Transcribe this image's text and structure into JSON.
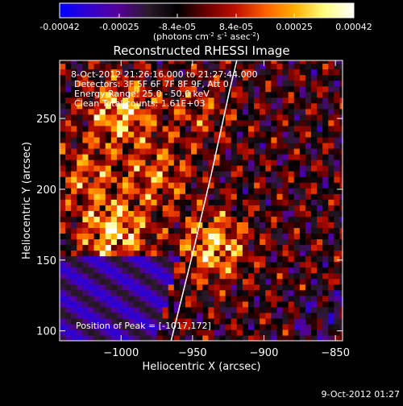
{
  "colorbar": {
    "tick_labels": [
      "-0.00042",
      "-0.00025",
      "-8.4e-05",
      "8.4e-05",
      "0.00025",
      "0.00042"
    ],
    "tick_values": [
      -0.00042,
      -0.00025,
      -8.4e-05,
      8.4e-05,
      0.00025,
      0.00042
    ],
    "range": [
      -0.00042,
      0.00042
    ],
    "units_prefix": "(photons cm",
    "units_exp1": "-2",
    "units_mid1": " s",
    "units_exp2": "-1",
    "units_mid2": " asec",
    "units_exp3": "-2",
    "units_suffix": ")",
    "colors": [
      "#0000ff",
      "#3300cc",
      "#550099",
      "#2a1a2a",
      "#000000",
      "#6a0000",
      "#c01000",
      "#ff6000",
      "#ffb000",
      "#ffff80",
      "#ffffff"
    ]
  },
  "chart_data": {
    "type": "heatmap",
    "title": "Reconstructed RHESSI Image",
    "xlabel": "Heliocentric X (arcsec)",
    "ylabel": "Heliocentric Y (arcsec)",
    "xlim": [
      -1043,
      -845
    ],
    "ylim": [
      93,
      291
    ],
    "x_ticks": [
      -1000,
      -950,
      -900,
      -850
    ],
    "x_tick_labels": [
      "−1000",
      "−950",
      "−900",
      "−850"
    ],
    "y_ticks": [
      100,
      150,
      200,
      250
    ],
    "y_tick_labels": [
      "100",
      "150",
      "200",
      "250"
    ],
    "limb_points": [
      [
        -965,
        93
      ],
      [
        -951,
        150
      ],
      [
        -937,
        210
      ],
      [
        -924,
        270
      ],
      [
        -919,
        291
      ]
    ],
    "peak": [
      -1017,
      172
    ],
    "sources": [
      {
        "x": -1000,
        "y": 255,
        "intensity": 0.95
      },
      {
        "x": -1005,
        "y": 170,
        "intensity": 1.0
      },
      {
        "x": -935,
        "y": 160,
        "intensity": 0.95
      },
      {
        "x": -975,
        "y": 210,
        "intensity": 0.6
      },
      {
        "x": -1025,
        "y": 210,
        "intensity": 0.55
      },
      {
        "x": -945,
        "y": 255,
        "intensity": 0.4
      }
    ]
  },
  "info": {
    "time_range": "8-Oct-2012 21:26:16.000 to 21:27:44.000",
    "detectors": "Detectors: 3F 5F 6F 7F 8F 9F, Att 0",
    "energy_range": "Energy Range: 25.0 - 50.0 keV",
    "method_counts": "Clean    Total counts: 1.61E+03",
    "peak_position": "Position of Peak = [-1017,172]"
  },
  "footer": {
    "timestamp": "9-Oct-2012 01:27"
  }
}
